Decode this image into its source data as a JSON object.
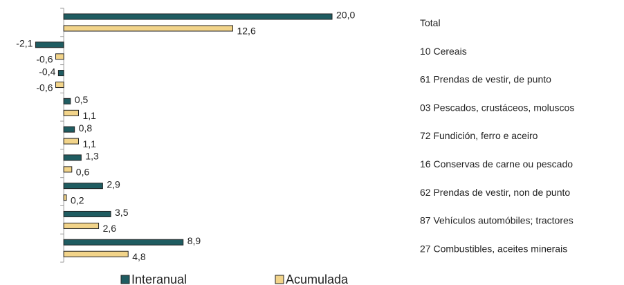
{
  "chart_data": {
    "type": "bar",
    "orientation": "horizontal",
    "categories": [
      "Total",
      "10 Cereais",
      "61 Prendas de vestir, de punto",
      "03 Pescados, crustáceos, moluscos",
      "72 Fundición, ferro e aceiro",
      "16 Conservas de carne ou pescado",
      "62 Prendas de vestir, non de punto",
      "87 Vehículos automóbiles; tractores",
      "27 Combustibles, aceites minerais"
    ],
    "series": [
      {
        "name": "Interanual",
        "color": "#1f5c61",
        "values": [
          20.0,
          -2.1,
          -0.4,
          0.5,
          0.8,
          1.3,
          2.9,
          3.5,
          8.9
        ],
        "value_labels": [
          "20,0",
          "-2,1",
          "-0,4",
          "0,5",
          "0,8",
          "1,3",
          "2,9",
          "3,5",
          "8,9"
        ]
      },
      {
        "name": "Acumulada",
        "color": "#f2d48a",
        "values": [
          12.6,
          -0.6,
          -0.6,
          1.1,
          1.1,
          0.6,
          0.2,
          2.6,
          4.8
        ],
        "value_labels": [
          "12,6",
          "-0,6",
          "-0,6",
          "1,1",
          "1,1",
          "0,6",
          "0,2",
          "2,6",
          "4,8"
        ]
      }
    ],
    "xlim": [
      -4.7,
      20
    ],
    "legend": "bottom"
  }
}
